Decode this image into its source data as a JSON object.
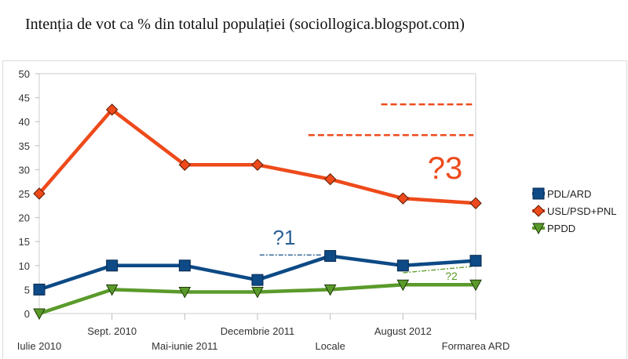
{
  "title": "Intenția de vot ca % din totalul populației (sociollogica.blogspot.com)",
  "chart_data": {
    "type": "line",
    "title": "Intenția de vot ca % din totalul populației (sociollogica.blogspot.com)",
    "categories": [
      "Iulie 2010",
      "Sept. 2010",
      "Mai-iunie 2011",
      "Decembrie 2011",
      "Locale",
      "August 2012",
      "Formarea ARD"
    ],
    "ylim": [
      0,
      50
    ],
    "yticks": [
      0,
      5,
      10,
      15,
      20,
      25,
      30,
      35,
      40,
      45,
      50
    ],
    "grid": false,
    "legend_position": "right",
    "series": [
      {
        "name": "PDL/ARD",
        "color": "#0d4a86",
        "marker": "square",
        "values": [
          5,
          10,
          10,
          7,
          12,
          10,
          11
        ]
      },
      {
        "name": "USL/PSD+PNL",
        "color": "#ee4a1b",
        "marker": "diamond",
        "values": [
          25,
          42.5,
          31,
          31,
          28,
          24,
          23
        ]
      },
      {
        "name": "PPDD",
        "color": "#5a9a2a",
        "marker": "triangle-down",
        "values": [
          0,
          5,
          4.5,
          4.5,
          5,
          6,
          6
        ]
      }
    ],
    "annotations": [
      {
        "text": "?1",
        "color": "#2a5f94",
        "style": "dash-dot",
        "from": [
          3.03,
          12.2
        ],
        "to": [
          3.88,
          12.2
        ]
      },
      {
        "text": "?2",
        "color": "#5a9a2a",
        "style": "dash-dot",
        "from": [
          5.0,
          8.5
        ],
        "to": [
          5.95,
          9.8
        ]
      },
      {
        "text": "?3",
        "color": "#ee4a1b",
        "style": "dashed",
        "from": [
          3.7,
          37.2
        ],
        "to": [
          5.97,
          37.2
        ]
      },
      {
        "text": "",
        "color": "#ee4a1b",
        "style": "dashed",
        "from": [
          4.7,
          43.6
        ],
        "to": [
          5.95,
          43.6
        ]
      }
    ]
  }
}
